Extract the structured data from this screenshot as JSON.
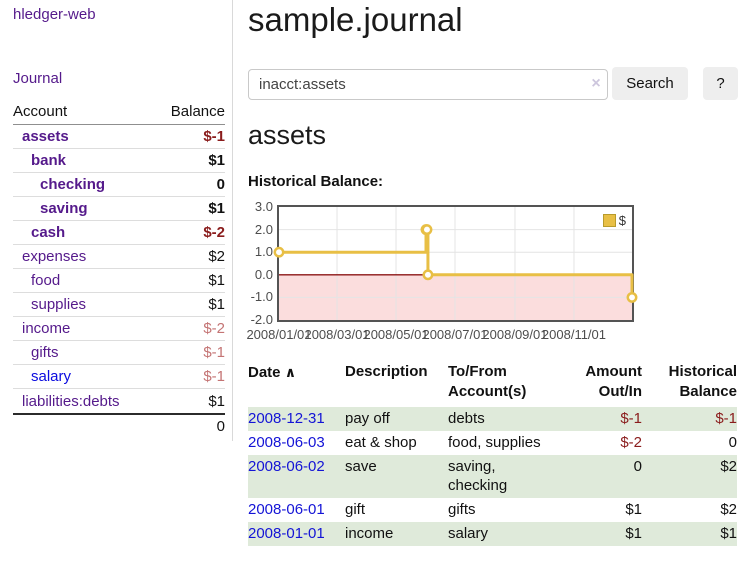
{
  "sidebar": {
    "brand": "hledger-web",
    "journal_link": "Journal",
    "account_header": "Account",
    "balance_header": "Balance",
    "accounts": [
      {
        "name": "assets",
        "balance": "$-1"
      },
      {
        "name": "bank",
        "balance": "$1"
      },
      {
        "name": "checking",
        "balance": "0"
      },
      {
        "name": "saving",
        "balance": "$1"
      },
      {
        "name": "cash",
        "balance": "$-2"
      },
      {
        "name": "expenses",
        "balance": "$2"
      },
      {
        "name": "food",
        "balance": "$1"
      },
      {
        "name": "supplies",
        "balance": "$1"
      },
      {
        "name": "income",
        "balance": "$-2"
      },
      {
        "name": "gifts",
        "balance": "$-1"
      },
      {
        "name": "salary",
        "balance": "$-1"
      },
      {
        "name": "liabilities:debts",
        "balance": "$1"
      }
    ],
    "total": "0"
  },
  "main": {
    "title": "sample.journal",
    "search": {
      "value": "inacct:assets",
      "clear_icon": "×",
      "search_label": "Search",
      "help_label": "?"
    },
    "account_heading": "assets",
    "chart_title": "Historical Balance:"
  },
  "chart_data": {
    "type": "line",
    "step": true,
    "title": "Historical Balance",
    "series": [
      {
        "name": "$",
        "color": "#e8bf45",
        "points": [
          [
            "2008-01-01",
            1
          ],
          [
            "2008-06-01",
            2
          ],
          [
            "2008-06-02",
            2
          ],
          [
            "2008-06-03",
            0
          ],
          [
            "2008-12-31",
            -1
          ]
        ]
      }
    ],
    "x_ticks": [
      "2008/01/01",
      "2008/03/01",
      "2008/05/01",
      "2008/07/01",
      "2008/09/01",
      "2008/11/01"
    ],
    "y_ticks": [
      "3.0",
      "2.0",
      "1.0",
      "0.0",
      "-1.0",
      "-2.0"
    ],
    "ylim": [
      -2,
      3
    ],
    "xlim": [
      "2008-01-01",
      "2008-12-31"
    ],
    "grid": true,
    "legend_position": "top-right",
    "negative_fill": "#fbdddd",
    "zero_line_color": "#8b1515"
  },
  "register": {
    "headers": {
      "date": "Date",
      "sort_icon": "∧",
      "description": "Description",
      "account": "To/From Account(s)",
      "amount": "Amount Out/In",
      "balance": "Historical Balance"
    },
    "rows": [
      {
        "date": "2008-12-31",
        "description": "pay off",
        "account": "debts",
        "amount": "$-1",
        "balance": "$-1"
      },
      {
        "date": "2008-06-03",
        "description": "eat & shop",
        "account": "food, supplies",
        "amount": "$-2",
        "balance": "0"
      },
      {
        "date": "2008-06-02",
        "description": "save",
        "account": "saving, checking",
        "amount": "0",
        "balance": "$2"
      },
      {
        "date": "2008-06-01",
        "description": "gift",
        "account": "gifts",
        "amount": "$1",
        "balance": "$2"
      },
      {
        "date": "2008-01-01",
        "description": "income",
        "account": "salary",
        "amount": "$1",
        "balance": "$1"
      }
    ]
  }
}
